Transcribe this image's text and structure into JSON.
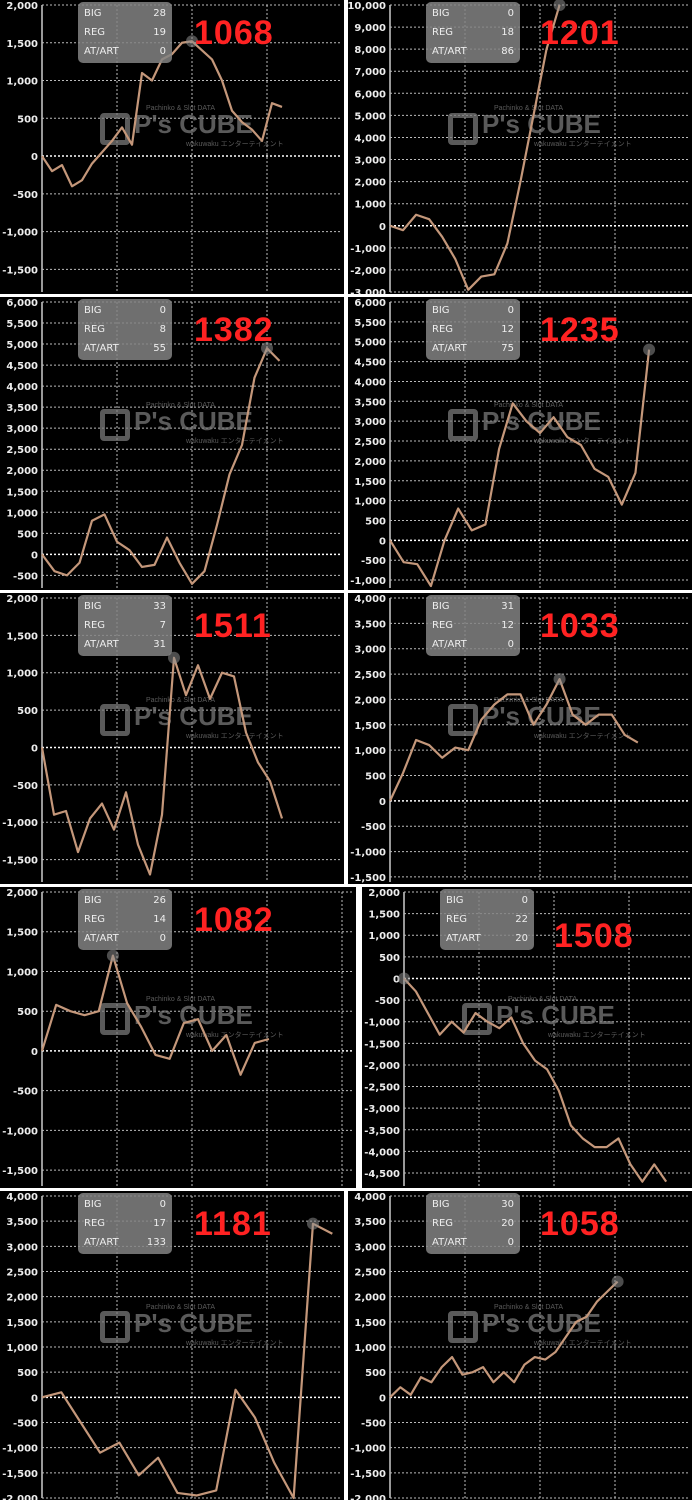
{
  "watermark": {
    "main": "P's CUBE",
    "sub": "Pachinko & Slot DATA",
    "sub2": "wakuwaku エンターテイメント"
  },
  "colors": {
    "background": "#000000",
    "line": "#c4977a",
    "grid": "#bbbbbb",
    "label_number": "#ff2222",
    "stats_box": "#828282"
  },
  "stats_labels": {
    "big": "BIG",
    "reg": "REG",
    "at": "AT/ART"
  },
  "chart_data": [
    {
      "type": "line",
      "id": "1068",
      "label": "1068",
      "stats": {
        "big": "28",
        "reg": "19",
        "at": "0"
      },
      "ylim": [
        -1800,
        2000
      ],
      "ytick_step": 500,
      "grid": true,
      "y": [
        0,
        -200,
        -120,
        -400,
        -320,
        -100,
        50,
        200,
        380,
        150,
        1100,
        1000,
        1280,
        1350,
        1500,
        1520,
        1400,
        1280,
        1000,
        600,
        450,
        350,
        200,
        700,
        650
      ],
      "x_span": 30
    },
    {
      "type": "line",
      "id": "1201",
      "label": "1201",
      "stats": {
        "big": "0",
        "reg": "18",
        "at": "86"
      },
      "ylim": [
        -3000,
        10000
      ],
      "ytick_step": 1000,
      "grid": true,
      "y": [
        0,
        -200,
        500,
        300,
        -500,
        -1500,
        -2900,
        -2300,
        -2200,
        -800,
        2000,
        5000,
        8000,
        10000
      ],
      "x_span": 23
    },
    {
      "type": "line",
      "id": "1382",
      "label": "1382",
      "stats": {
        "big": "0",
        "reg": "8",
        "at": "55"
      },
      "ylim": [
        -800,
        6000
      ],
      "ytick_step": 500,
      "grid": true,
      "y": [
        0,
        -400,
        -500,
        -200,
        800,
        950,
        300,
        100,
        -300,
        -250,
        400,
        -200,
        -700,
        -400,
        700,
        1900,
        2600,
        4200,
        4900,
        4600
      ],
      "x_span": 24
    },
    {
      "type": "line",
      "id": "1235",
      "label": "1235",
      "stats": {
        "big": "0",
        "reg": "12",
        "at": "75"
      },
      "ylim": [
        -1200,
        6000
      ],
      "ytick_step": 500,
      "grid": true,
      "y": [
        0,
        -550,
        -600,
        -1150,
        0,
        800,
        250,
        400,
        2300,
        3450,
        3000,
        2700,
        3100,
        2600,
        2400,
        1800,
        1600,
        900,
        1700,
        4800
      ],
      "x_span": 22
    },
    {
      "type": "line",
      "id": "1511",
      "label": "1511",
      "stats": {
        "big": "33",
        "reg": "7",
        "at": "31"
      },
      "ylim": [
        -1800,
        2000
      ],
      "ytick_step": 500,
      "grid": true,
      "y": [
        0,
        -900,
        -850,
        -1400,
        -950,
        -750,
        -1100,
        -600,
        -1300,
        -1700,
        -900,
        1200,
        700,
        1100,
        650,
        1000,
        950,
        200,
        -200,
        -450,
        -950
      ],
      "x_span": 25
    },
    {
      "type": "line",
      "id": "1033",
      "label": "1033",
      "stats": {
        "big": "31",
        "reg": "12",
        "at": "0"
      },
      "ylim": [
        -1600,
        4000
      ],
      "ytick_step": 500,
      "grid": true,
      "y": [
        0,
        550,
        1200,
        1100,
        850,
        1050,
        1000,
        1600,
        1900,
        2100,
        2100,
        1500,
        1900,
        2400,
        1700,
        1500,
        1700,
        1700,
        1300,
        1150
      ],
      "x_span": 23
    },
    {
      "type": "line",
      "id": "1082",
      "label": "1082",
      "stats": {
        "big": "26",
        "reg": "14",
        "at": "0"
      },
      "ylim": [
        -1700,
        2000
      ],
      "ytick_step": 500,
      "grid": true,
      "y": [
        0,
        580,
        500,
        450,
        500,
        1200,
        600,
        300,
        -50,
        -100,
        350,
        400,
        0,
        200,
        -300,
        100,
        150
      ],
      "x_span": 22
    },
    {
      "type": "line",
      "id": "1508",
      "label": "1508",
      "stats": {
        "big": "0",
        "reg": "22",
        "at": "20"
      },
      "ylim": [
        -4800,
        2000
      ],
      "ytick_step": 500,
      "grid": true,
      "y": [
        0,
        -300,
        -800,
        -1300,
        -1000,
        -1250,
        -800,
        -1000,
        -1150,
        -900,
        -1500,
        -1900,
        -2100,
        -2600,
        -3400,
        -3700,
        -3900,
        -3900,
        -3700,
        -4300,
        -4700,
        -4300,
        -4700
      ],
      "x_span": 24
    },
    {
      "type": "line",
      "id": "1181",
      "label": "1181",
      "stats": {
        "big": "0",
        "reg": "17",
        "at": "133"
      },
      "ylim": [
        -2000,
        4000
      ],
      "ytick_step": 500,
      "grid": true,
      "y": [
        0,
        100,
        -500,
        -1100,
        -900,
        -1550,
        -1200,
        -1900,
        -1950,
        -1850,
        150,
        -400,
        -1300,
        -2000,
        3450,
        3250
      ],
      "x_span": 15.5
    },
    {
      "type": "line",
      "id": "1058",
      "label": "1058",
      "stats": {
        "big": "30",
        "reg": "20",
        "at": "0"
      },
      "ylim": [
        -2000,
        4000
      ],
      "ytick_step": 500,
      "grid": true,
      "y": [
        0,
        200,
        50,
        400,
        300,
        600,
        800,
        450,
        500,
        600,
        300,
        500,
        300,
        650,
        800,
        750,
        900,
        1200,
        1500,
        1600,
        1900,
        2100,
        2300
      ],
      "x_span": 29
    }
  ]
}
